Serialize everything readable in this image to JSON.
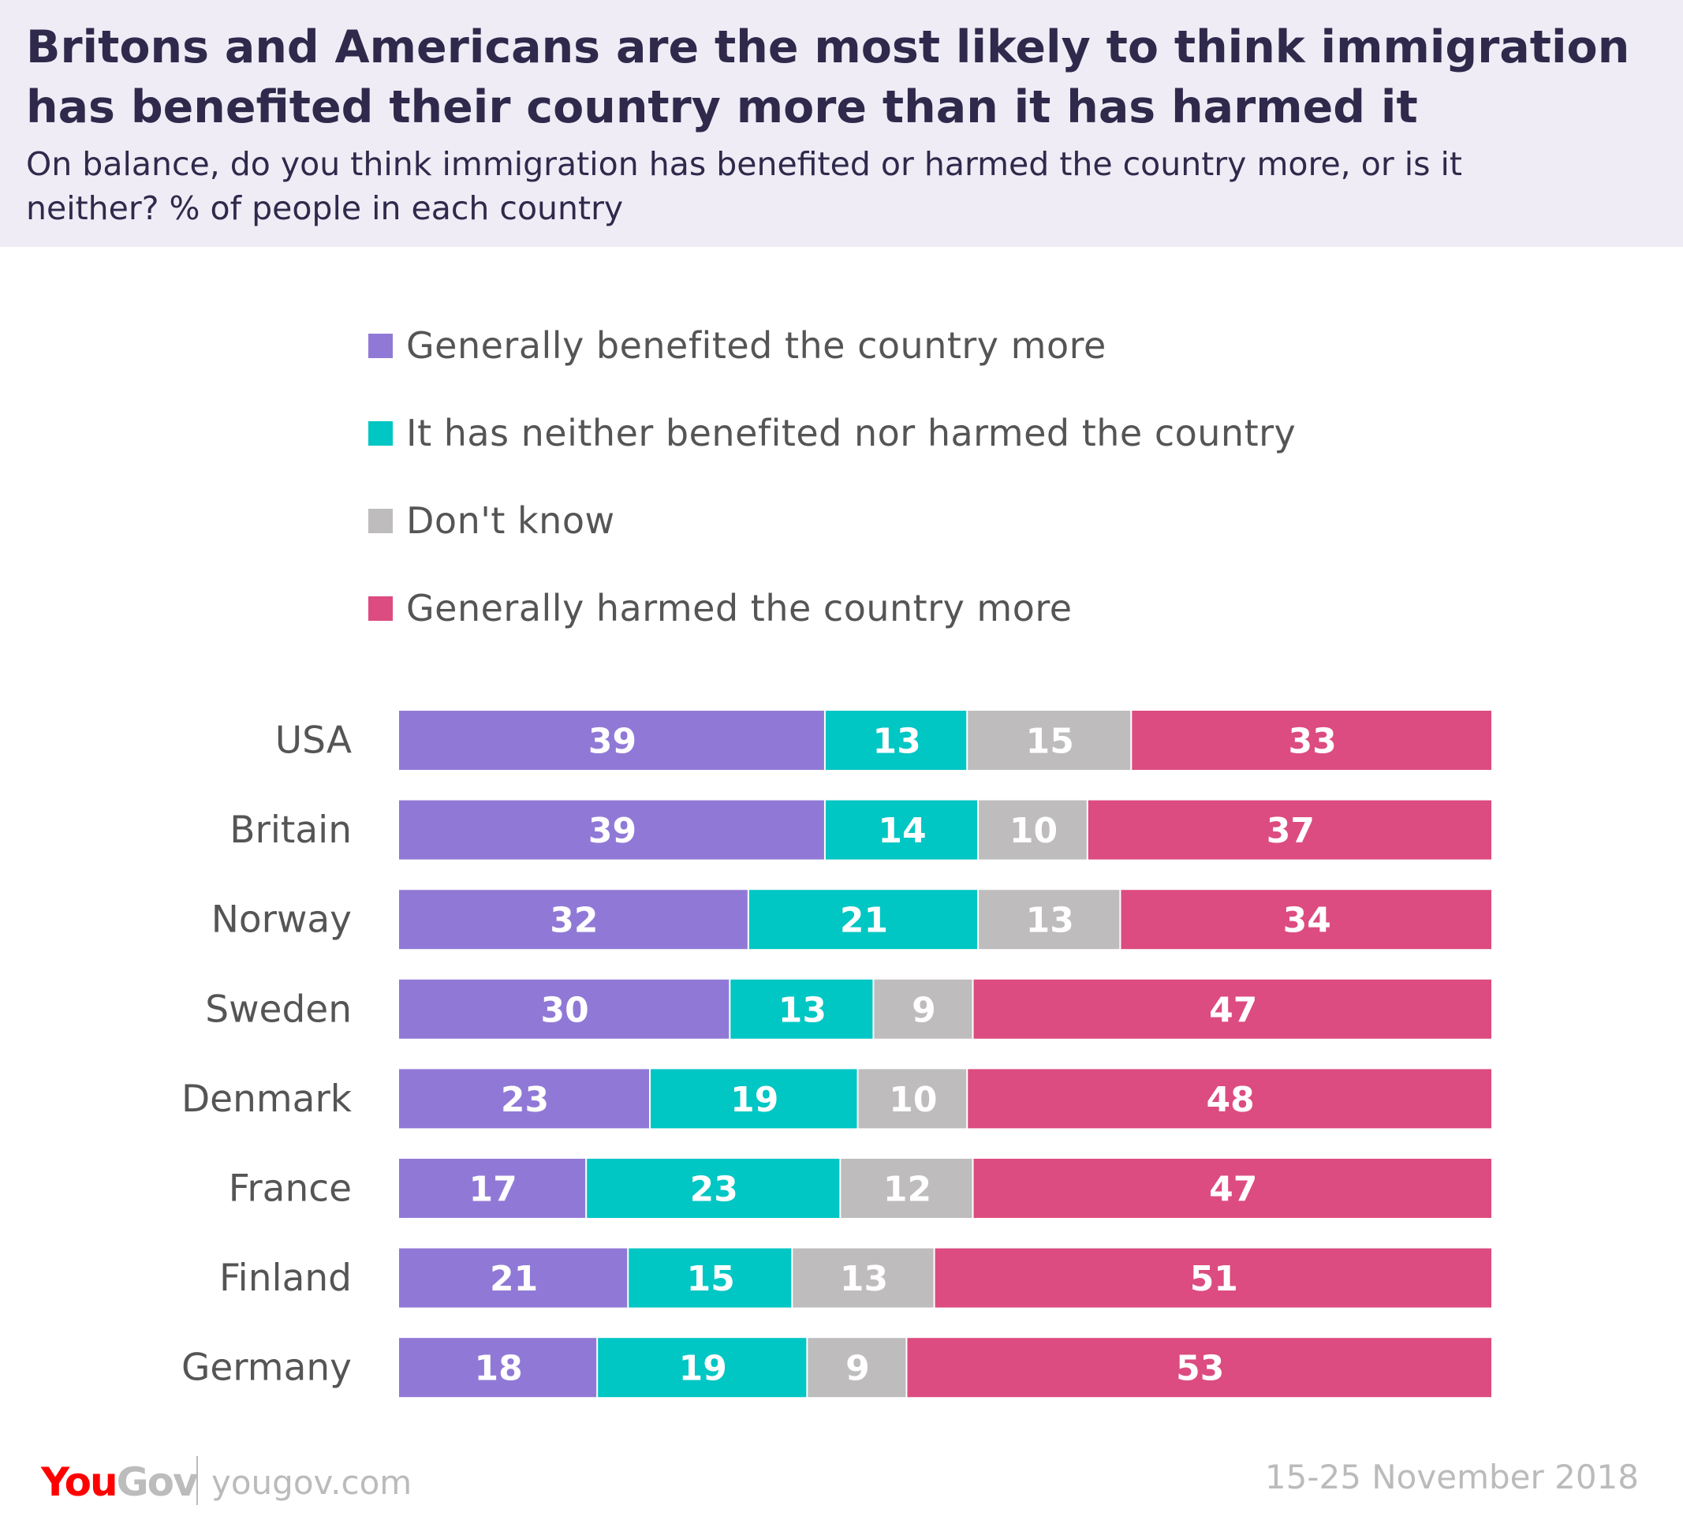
{
  "title": "Britons and Americans are the most likely to think immigration has benefited their country more than it has harmed it",
  "subtitle": "On balance, do you think immigration has benefited or harmed the country more, or is it neither? % of people in each country",
  "footer": {
    "logo_you": "You",
    "logo_gov": "Gov",
    "site": "yougov.com",
    "date": "15-25 November 2018"
  },
  "chart_data": {
    "type": "bar",
    "orientation": "horizontal",
    "stacked": true,
    "unit": "%",
    "legend_placement": "top",
    "grid": false,
    "categories": [
      "USA",
      "Britain",
      "Norway",
      "Sweden",
      "Denmark",
      "France",
      "Finland",
      "Germany"
    ],
    "series": [
      {
        "name": "Generally benefited the country more",
        "color": "#9079d6",
        "values": [
          39,
          39,
          32,
          30,
          23,
          17,
          21,
          18
        ]
      },
      {
        "name": "It has neither benefited nor harmed the country",
        "color": "#00c6c4",
        "values": [
          13,
          14,
          21,
          13,
          19,
          23,
          15,
          19
        ]
      },
      {
        "name": "Don't know",
        "color": "#bebcbd",
        "values": [
          15,
          10,
          13,
          9,
          10,
          12,
          13,
          9
        ]
      },
      {
        "name": "Generally harmed the country more",
        "color": "#dc4c80",
        "values": [
          33,
          37,
          34,
          47,
          48,
          47,
          51,
          53
        ]
      }
    ]
  }
}
